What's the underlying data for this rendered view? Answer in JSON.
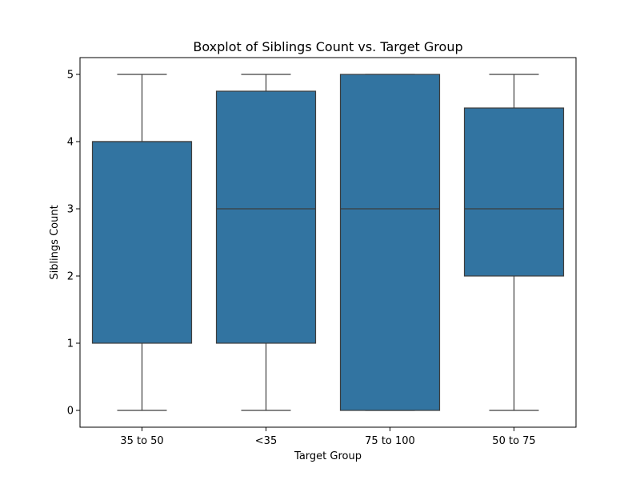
{
  "chart_data": {
    "type": "box",
    "title": "Boxplot of Siblings Count vs. Target Group",
    "xlabel": "Target Group",
    "ylabel": "Siblings Count",
    "ylim": [
      -0.25,
      5.25
    ],
    "yticks": [
      0,
      1,
      2,
      3,
      4,
      5
    ],
    "categories": [
      "35 to 50",
      "<35",
      "75 to 100",
      "50 to 75"
    ],
    "boxes": [
      {
        "category": "35 to 50",
        "whisker_low": 0,
        "q1": 1,
        "median": 4,
        "q3": 4,
        "whisker_high": 5
      },
      {
        "category": "<35",
        "whisker_low": 0,
        "q1": 1,
        "median": 3,
        "q3": 4.75,
        "whisker_high": 5
      },
      {
        "category": "75 to 100",
        "whisker_low": 0,
        "q1": 0,
        "median": 3,
        "q3": 5,
        "whisker_high": 5
      },
      {
        "category": "50 to 75",
        "whisker_low": 0,
        "q1": 2,
        "median": 3,
        "q3": 4.5,
        "whisker_high": 5
      }
    ],
    "box_color": "#3274a1",
    "line_color": "#3d3d3d",
    "grid": false,
    "legend": "none"
  }
}
